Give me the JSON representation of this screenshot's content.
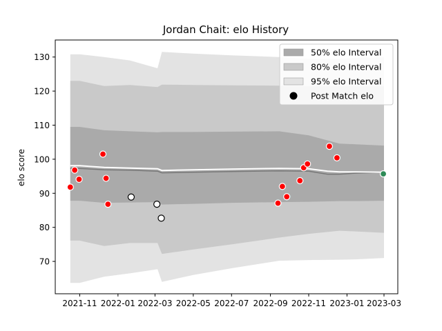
{
  "chart_data": {
    "type": "line",
    "title": "Jordan Chait: elo History",
    "xlabel": "",
    "ylabel": "elo score",
    "xlim": [
      "2021-09-23",
      "2023-03-23"
    ],
    "ylim": [
      60.5,
      135
    ],
    "x_ticks": [
      "2021-11",
      "2022-01",
      "2022-03",
      "2022-05",
      "2022-07",
      "2022-09",
      "2022-11",
      "2023-01",
      "2023-03"
    ],
    "y_ticks": [
      70,
      80,
      90,
      100,
      110,
      120,
      130
    ],
    "grid": false,
    "legend_position": "top-right",
    "colors": {
      "band50": "#aaaaaa",
      "band80": "#c9c9c9",
      "band95": "#e3e3e3",
      "mean_line": "#777777",
      "median_line": "#ffffff",
      "win_point": "#ff0000",
      "loss_point": "#ffffff",
      "current_point": "#2e8b57"
    },
    "series": [
      {
        "name": "95% elo Interval",
        "dates": [
          "2021-10-17",
          "2021-11-01",
          "2021-12-10",
          "2022-01-20",
          "2022-03-05",
          "2022-03-12",
          "2022-05-01",
          "2022-07-01",
          "2022-09-15",
          "2022-11-01",
          "2022-12-20",
          "2023-01-15",
          "2023-03-01"
        ],
        "upper": [
          130.8,
          130.8,
          130.0,
          129.0,
          126.7,
          131.5,
          131.0,
          130.5,
          130.0,
          129.5,
          129.5,
          129.8,
          130.0
        ],
        "lower": [
          63.7,
          63.7,
          65.5,
          66.5,
          67.7,
          64.0,
          66.0,
          68.0,
          70.2,
          70.4,
          70.5,
          70.6,
          71.0
        ]
      },
      {
        "name": "80% elo Interval",
        "dates": [
          "2021-10-17",
          "2021-11-01",
          "2021-12-10",
          "2022-01-20",
          "2022-03-05",
          "2022-03-12",
          "2022-05-01",
          "2022-07-01",
          "2022-09-15",
          "2022-11-01",
          "2022-12-20",
          "2023-01-15",
          "2023-03-01"
        ],
        "upper": [
          123.0,
          123.0,
          121.5,
          121.8,
          121.2,
          121.9,
          121.8,
          121.7,
          121.6,
          121.5,
          121.5,
          121.5,
          121.5
        ],
        "lower": [
          76.1,
          76.1,
          74.5,
          75.4,
          75.4,
          72.2,
          73.5,
          75.0,
          77.0,
          78.1,
          79.0,
          78.8,
          78.4
        ]
      },
      {
        "name": "50% elo Interval",
        "dates": [
          "2021-10-17",
          "2021-11-01",
          "2021-12-10",
          "2022-01-20",
          "2022-03-05",
          "2022-03-12",
          "2022-05-01",
          "2022-07-01",
          "2022-09-15",
          "2022-11-01",
          "2022-12-20",
          "2023-01-15",
          "2023-03-01"
        ],
        "upper": [
          109.5,
          109.5,
          108.5,
          108.2,
          107.9,
          108.0,
          108.0,
          108.1,
          108.2,
          107.0,
          104.6,
          104.4,
          104.0
        ],
        "lower": [
          87.8,
          87.8,
          87.2,
          87.3,
          87.4,
          86.7,
          86.9,
          87.2,
          87.4,
          87.5,
          87.7,
          87.7,
          87.8
        ]
      },
      {
        "name": "mean",
        "dates": [
          "2021-10-17",
          "2021-11-01",
          "2021-12-10",
          "2022-01-20",
          "2022-03-05",
          "2022-03-12",
          "2022-05-01",
          "2022-07-01",
          "2022-09-15",
          "2022-11-01",
          "2022-12-01",
          "2022-12-20",
          "2023-01-15",
          "2023-03-01"
        ],
        "values": [
          97.3,
          97.3,
          96.9,
          96.8,
          96.5,
          96.0,
          96.2,
          96.4,
          96.6,
          96.5,
          95.6,
          95.6,
          95.9,
          96.2
        ]
      },
      {
        "name": "median",
        "dates": [
          "2021-10-17",
          "2021-11-01",
          "2021-12-10",
          "2022-01-20",
          "2022-03-05",
          "2022-03-12",
          "2022-05-01",
          "2022-07-01",
          "2022-09-15",
          "2022-11-01",
          "2022-12-01",
          "2022-12-20",
          "2023-01-15",
          "2023-03-01"
        ],
        "values": [
          98.1,
          98.1,
          97.6,
          97.4,
          97.2,
          96.7,
          96.9,
          97.1,
          97.3,
          97.2,
          96.5,
          96.3,
          96.3,
          96.2
        ]
      },
      {
        "name": "Post Match elo",
        "points": [
          {
            "date": "2021-10-17",
            "value": 91.8,
            "result": "win"
          },
          {
            "date": "2021-10-24",
            "value": 96.8,
            "result": "win"
          },
          {
            "date": "2021-10-31",
            "value": 94.1,
            "result": "win"
          },
          {
            "date": "2021-12-08",
            "value": 101.5,
            "result": "win"
          },
          {
            "date": "2021-12-13",
            "value": 94.4,
            "result": "win"
          },
          {
            "date": "2021-12-16",
            "value": 86.8,
            "result": "win"
          },
          {
            "date": "2022-01-22",
            "value": 88.9,
            "result": "loss"
          },
          {
            "date": "2022-03-04",
            "value": 86.8,
            "result": "loss"
          },
          {
            "date": "2022-03-11",
            "value": 82.7,
            "result": "loss"
          },
          {
            "date": "2022-09-13",
            "value": 87.1,
            "result": "win"
          },
          {
            "date": "2022-09-20",
            "value": 92.0,
            "result": "win"
          },
          {
            "date": "2022-09-27",
            "value": 89.0,
            "result": "win"
          },
          {
            "date": "2022-10-18",
            "value": 93.7,
            "result": "win"
          },
          {
            "date": "2022-10-24",
            "value": 97.5,
            "result": "win"
          },
          {
            "date": "2022-10-30",
            "value": 98.6,
            "result": "win"
          },
          {
            "date": "2022-12-04",
            "value": 103.8,
            "result": "win"
          },
          {
            "date": "2022-12-16",
            "value": 100.4,
            "result": "win"
          },
          {
            "date": "2023-02-28",
            "value": 95.7,
            "result": "current"
          }
        ]
      }
    ],
    "legend": [
      {
        "label": "50% elo Interval",
        "kind": "band50"
      },
      {
        "label": "80% elo Interval",
        "kind": "band80"
      },
      {
        "label": "95% elo Interval",
        "kind": "band95"
      },
      {
        "label": "Post Match elo",
        "kind": "marker"
      }
    ]
  }
}
